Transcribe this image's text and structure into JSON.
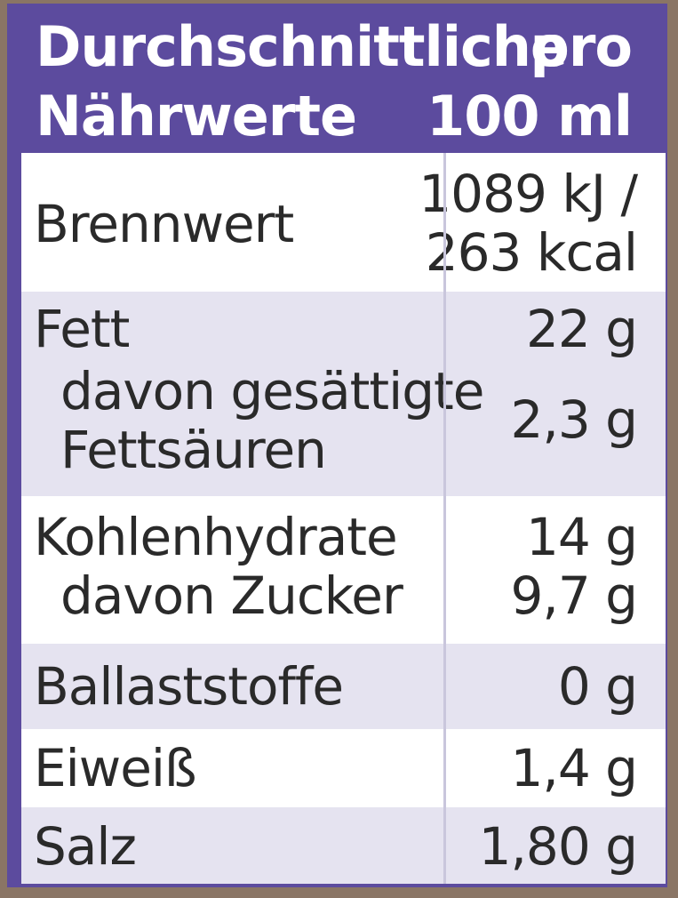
{
  "header": {
    "label_line1": "Durchschnittliche",
    "label_line2": "Nährwerte",
    "unit_line1": "pro",
    "unit_line2": "100 ml"
  },
  "rows": {
    "brennwert": {
      "label": "Brennwert",
      "value_line1": "1089 kJ /",
      "value_line2": "263 kcal"
    },
    "fett": {
      "label": "Fett",
      "value": "22 g"
    },
    "gesaettigte": {
      "label_line1": "davon gesättigte",
      "label_line2": "Fettsäuren",
      "value": "2,3 g"
    },
    "kohlenhydrate": {
      "label": "Kohlenhydrate",
      "value": "14 g"
    },
    "zucker": {
      "label": "davon Zucker",
      "value": "9,7 g"
    },
    "ballaststoffe": {
      "label": "Ballaststoffe",
      "value": "0 g"
    },
    "eiweiss": {
      "label": "Eiweiß",
      "value": "1,4 g"
    },
    "salz": {
      "label": "Salz",
      "value": "1,80 g"
    }
  },
  "colors": {
    "header_bg": "#5c4b9e",
    "row_shade": "#e5e3f0",
    "text": "#2a2a2a"
  }
}
